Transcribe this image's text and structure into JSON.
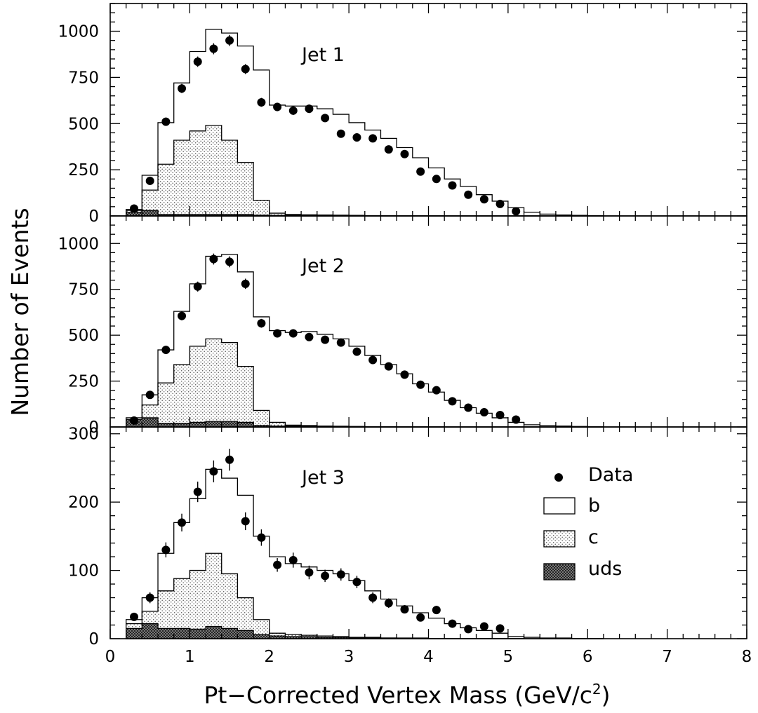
{
  "figure": {
    "xlabel": "Pt−Corrected Vertex Mass (GeV/c",
    "xlabel_sup": "2",
    "xlabel_close": ")",
    "ylabel": "Number of Events"
  },
  "legend": {
    "data": "Data",
    "b": "b",
    "c": "c",
    "uds": "uds"
  },
  "colors": {
    "data": "#000000",
    "b_fill": "#ffffff",
    "c_fill": "#e8e8e8",
    "uds_fill": "#6a6a6a",
    "line": "#000000"
  },
  "chart_data": [
    {
      "type": "bar",
      "label": "Jet 1",
      "xlim": [
        0,
        8
      ],
      "ylim": [
        0,
        1150
      ],
      "yticks": [
        0,
        250,
        500,
        750,
        1000
      ],
      "xticks": [
        0,
        1,
        2,
        3,
        4,
        5,
        6,
        7,
        8
      ],
      "bin_edges": [
        0.2,
        0.4,
        0.6,
        0.8,
        1.0,
        1.2,
        1.4,
        1.6,
        1.8,
        2.0,
        2.2,
        2.4,
        2.6,
        2.8,
        3.0,
        3.2,
        3.4,
        3.6,
        3.8,
        4.0,
        4.2,
        4.4,
        4.6,
        4.8,
        5.0,
        5.2,
        5.4,
        5.6,
        5.8,
        6.0,
        6.2
      ],
      "series": [
        {
          "name": "b",
          "values": [
            35,
            220,
            505,
            720,
            890,
            1010,
            990,
            920,
            790,
            600,
            595,
            595,
            580,
            550,
            505,
            465,
            420,
            370,
            315,
            260,
            200,
            160,
            115,
            80,
            45,
            20,
            10,
            5,
            3,
            2
          ]
        },
        {
          "name": "c",
          "values": [
            30,
            140,
            280,
            410,
            460,
            490,
            410,
            290,
            85,
            15,
            8,
            6,
            5,
            4,
            3,
            2,
            2,
            1,
            1,
            1,
            0,
            0,
            0,
            0,
            0,
            0,
            0,
            0,
            0,
            0
          ]
        },
        {
          "name": "uds",
          "values": [
            20,
            30,
            8,
            8,
            8,
            8,
            8,
            8,
            4,
            3,
            3,
            2,
            2,
            1,
            1,
            1,
            1,
            0,
            0,
            0,
            0,
            0,
            0,
            0,
            0,
            0,
            0,
            0,
            0,
            0
          ]
        }
      ],
      "data": {
        "x": [
          0.3,
          0.5,
          0.7,
          0.9,
          1.1,
          1.3,
          1.5,
          1.7,
          1.9,
          2.1,
          2.3,
          2.5,
          2.7,
          2.9,
          3.1,
          3.3,
          3.5,
          3.7,
          3.9,
          4.1,
          4.3,
          4.5,
          4.7,
          4.9,
          5.1
        ],
        "y": [
          40,
          190,
          510,
          690,
          835,
          905,
          950,
          795,
          615,
          590,
          570,
          580,
          530,
          445,
          425,
          420,
          360,
          335,
          240,
          200,
          165,
          115,
          90,
          65,
          25
        ],
        "err": [
          7,
          15,
          22,
          25,
          28,
          30,
          30,
          27,
          24,
          23,
          23,
          23,
          22,
          20,
          20,
          20,
          18,
          18,
          15,
          14,
          12,
          10,
          9,
          8,
          5
        ]
      }
    },
    {
      "type": "bar",
      "label": "Jet 2",
      "xlim": [
        0,
        8
      ],
      "ylim": [
        0,
        1150
      ],
      "yticks": [
        0,
        250,
        500,
        750,
        1000
      ],
      "xticks": [
        0,
        1,
        2,
        3,
        4,
        5,
        6,
        7,
        8
      ],
      "bin_edges": [
        0.2,
        0.4,
        0.6,
        0.8,
        1.0,
        1.2,
        1.4,
        1.6,
        1.8,
        2.0,
        2.2,
        2.4,
        2.6,
        2.8,
        3.0,
        3.2,
        3.4,
        3.6,
        3.8,
        4.0,
        4.2,
        4.4,
        4.6,
        4.8,
        5.0,
        5.2,
        5.4,
        5.6,
        5.8,
        6.0,
        6.2
      ],
      "series": [
        {
          "name": "b",
          "values": [
            30,
            175,
            420,
            630,
            780,
            930,
            940,
            845,
            600,
            525,
            515,
            520,
            505,
            480,
            440,
            390,
            340,
            290,
            235,
            190,
            145,
            105,
            75,
            50,
            25,
            12,
            8,
            5,
            3,
            2
          ]
        },
        {
          "name": "c",
          "values": [
            50,
            120,
            240,
            340,
            440,
            480,
            460,
            330,
            90,
            25,
            10,
            8,
            5,
            4,
            3,
            2,
            2,
            1,
            1,
            1,
            0,
            0,
            0,
            0,
            0,
            0,
            0,
            0,
            0,
            0
          ]
        },
        {
          "name": "uds",
          "values": [
            40,
            50,
            20,
            20,
            25,
            30,
            30,
            25,
            8,
            5,
            5,
            3,
            3,
            2,
            2,
            1,
            1,
            1,
            0,
            0,
            0,
            0,
            0,
            0,
            0,
            0,
            0,
            0,
            0,
            0
          ]
        }
      ],
      "data": {
        "x": [
          0.3,
          0.5,
          0.7,
          0.9,
          1.1,
          1.3,
          1.5,
          1.7,
          1.9,
          2.1,
          2.3,
          2.5,
          2.7,
          2.9,
          3.1,
          3.3,
          3.5,
          3.7,
          3.9,
          4.1,
          4.3,
          4.5,
          4.7,
          4.9,
          5.1
        ],
        "y": [
          35,
          175,
          420,
          605,
          765,
          915,
          900,
          780,
          565,
          510,
          510,
          490,
          475,
          460,
          410,
          365,
          330,
          285,
          230,
          200,
          140,
          105,
          80,
          65,
          40
        ],
        "err": [
          6,
          13,
          20,
          24,
          27,
          30,
          30,
          28,
          24,
          23,
          23,
          22,
          22,
          21,
          20,
          19,
          18,
          17,
          15,
          14,
          12,
          10,
          9,
          8,
          6
        ]
      }
    },
    {
      "type": "bar",
      "label": "Jet 3",
      "xlim": [
        0,
        8
      ],
      "ylim": [
        0,
        310
      ],
      "yticks": [
        0,
        100,
        200,
        300
      ],
      "xticks": [
        0,
        1,
        2,
        3,
        4,
        5,
        6,
        7,
        8
      ],
      "bin_edges": [
        0.2,
        0.4,
        0.6,
        0.8,
        1.0,
        1.2,
        1.4,
        1.6,
        1.8,
        2.0,
        2.2,
        2.4,
        2.6,
        2.8,
        3.0,
        3.2,
        3.4,
        3.6,
        3.8,
        4.0,
        4.2,
        4.4,
        4.6,
        4.8,
        5.0,
        5.2,
        5.4,
        5.6,
        5.8,
        6.0,
        6.2
      ],
      "series": [
        {
          "name": "b",
          "values": [
            28,
            60,
            125,
            170,
            205,
            248,
            235,
            210,
            150,
            120,
            110,
            105,
            100,
            95,
            85,
            70,
            58,
            48,
            38,
            30,
            22,
            16,
            12,
            8,
            3,
            2,
            1,
            1,
            0,
            0
          ]
        },
        {
          "name": "c",
          "values": [
            22,
            40,
            70,
            88,
            100,
            125,
            95,
            60,
            28,
            8,
            6,
            5,
            4,
            3,
            2,
            2,
            1,
            1,
            1,
            0,
            0,
            0,
            0,
            0,
            0,
            0,
            0,
            0,
            0,
            0
          ]
        },
        {
          "name": "uds",
          "values": [
            15,
            22,
            15,
            15,
            14,
            18,
            15,
            12,
            6,
            4,
            3,
            3,
            2,
            2,
            1,
            1,
            1,
            0,
            0,
            0,
            0,
            0,
            0,
            0,
            0,
            0,
            0,
            0,
            0,
            0
          ]
        }
      ],
      "data": {
        "x": [
          0.3,
          0.5,
          0.7,
          0.9,
          1.1,
          1.3,
          1.5,
          1.7,
          1.9,
          2.1,
          2.3,
          2.5,
          2.7,
          2.9,
          3.1,
          3.3,
          3.5,
          3.7,
          3.9,
          4.1,
          4.3,
          4.5,
          4.7,
          4.9
        ],
        "y": [
          32,
          60,
          130,
          170,
          215,
          245,
          262,
          172,
          148,
          108,
          115,
          97,
          92,
          94,
          83,
          60,
          52,
          43,
          31,
          42,
          22,
          14,
          18,
          15
        ],
        "err": [
          5,
          8,
          11,
          13,
          15,
          16,
          16,
          13,
          12,
          10,
          11,
          10,
          9,
          9,
          9,
          8,
          7,
          6,
          5,
          6,
          4,
          3,
          4,
          3
        ]
      }
    }
  ]
}
